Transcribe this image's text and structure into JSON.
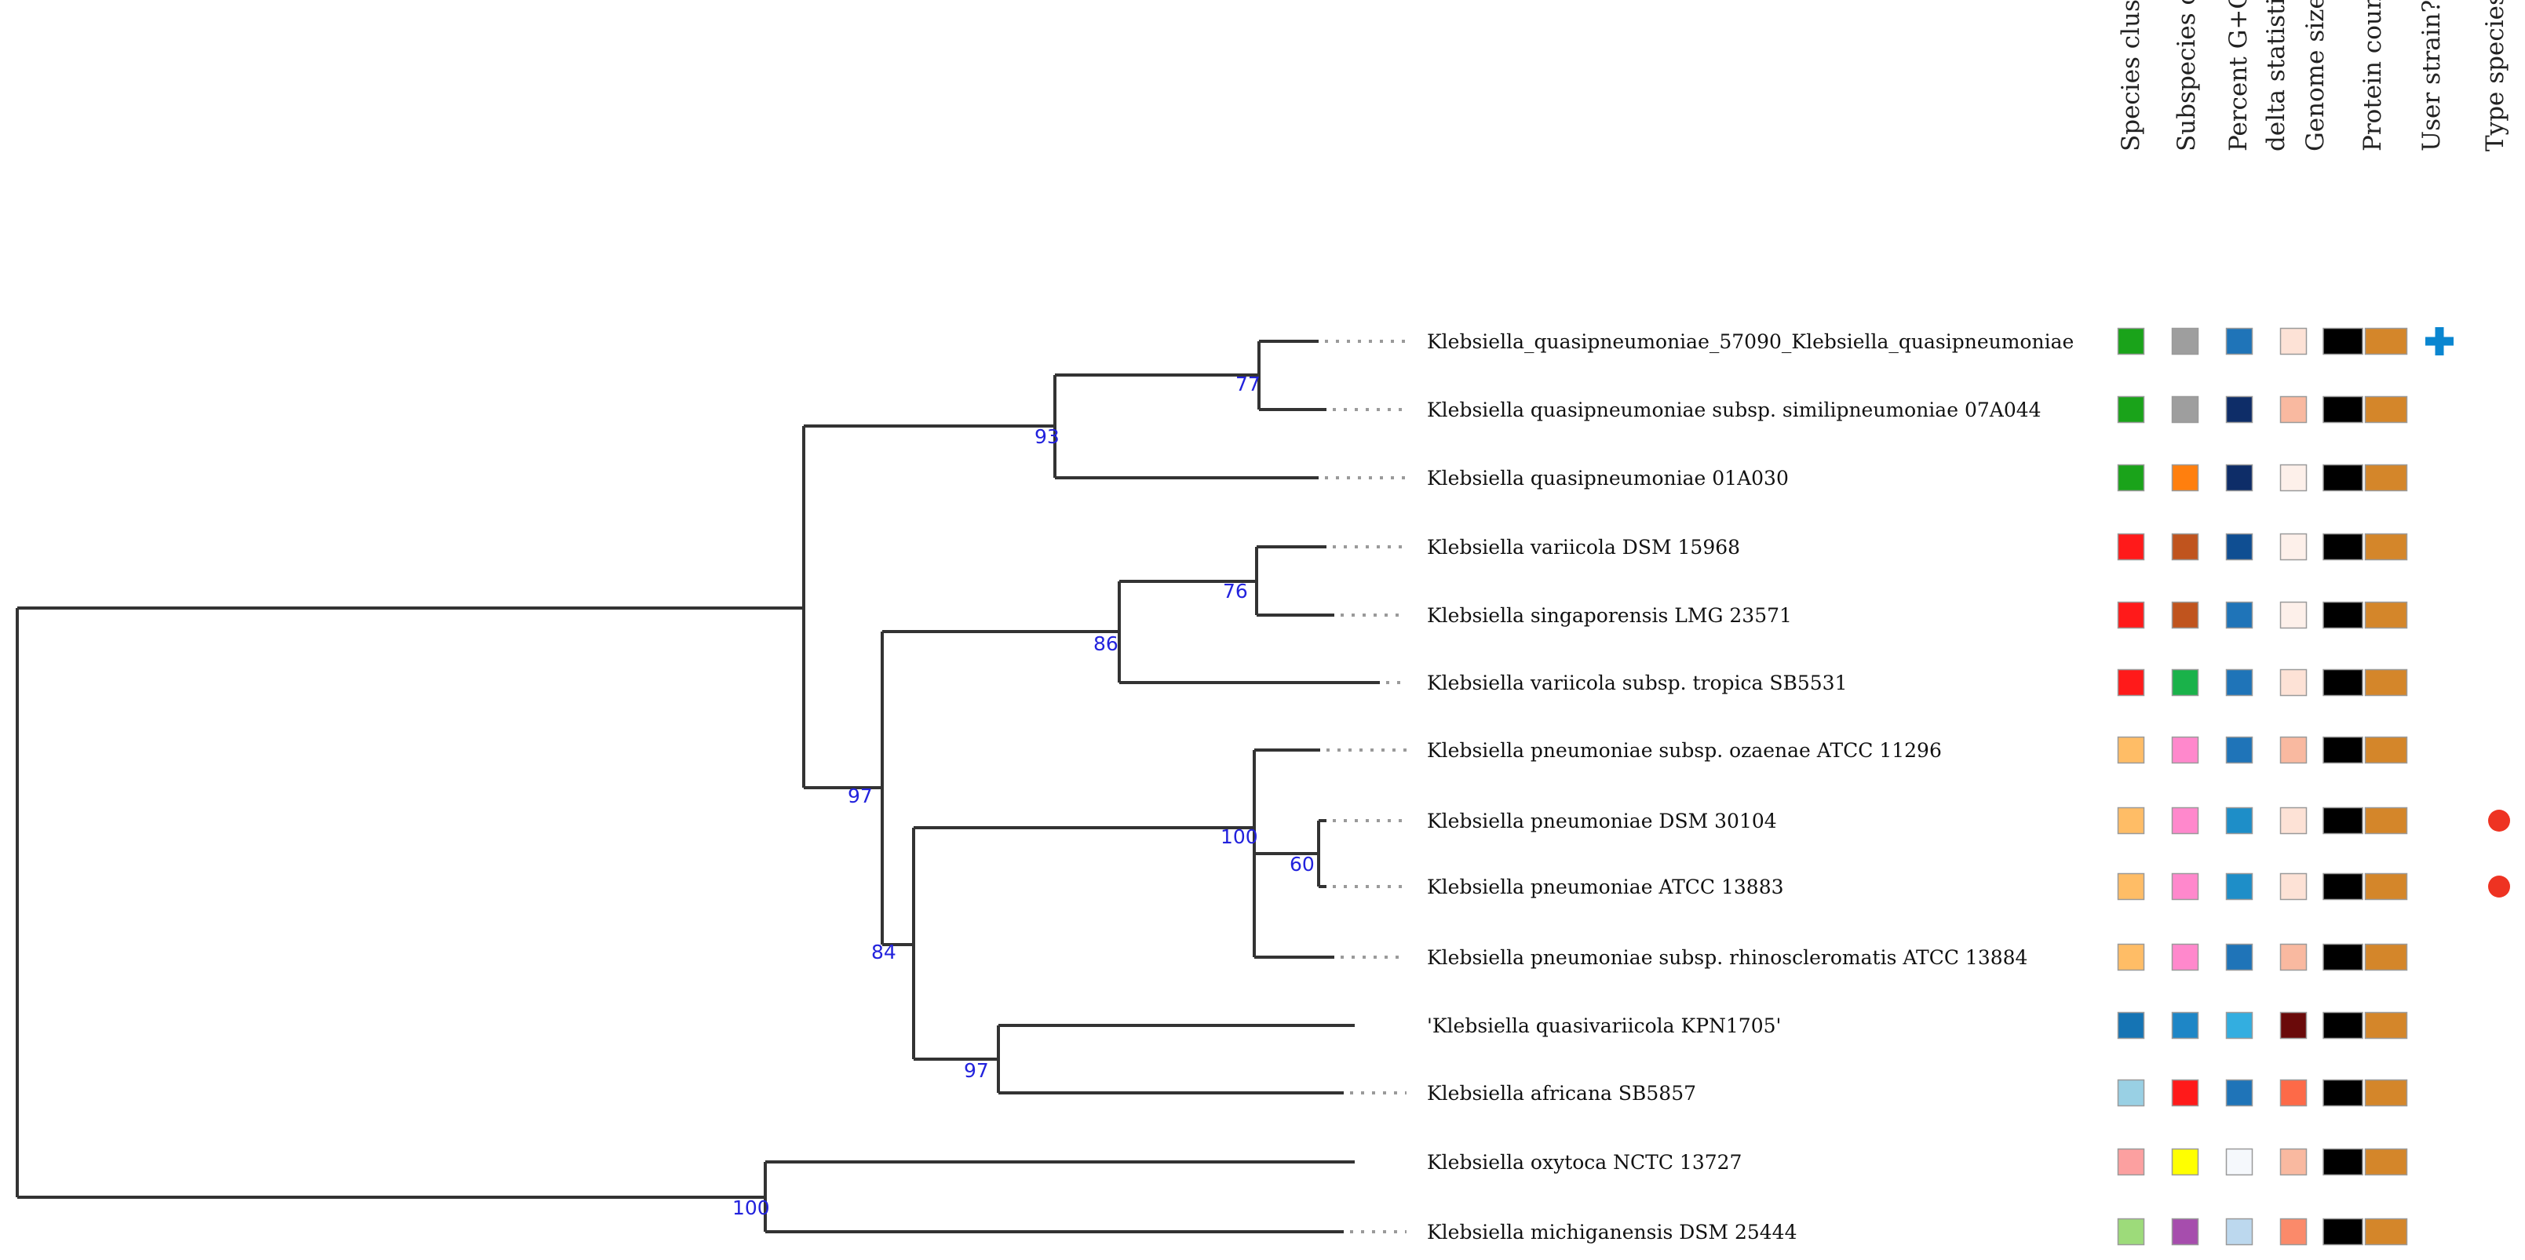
{
  "columns": [
    {
      "id": "species",
      "label": "Species cluster"
    },
    {
      "id": "subspecies",
      "label": "Subspecies cluster"
    },
    {
      "id": "gc",
      "label": "Percent G+C"
    },
    {
      "id": "delta",
      "label": "delta statistics"
    },
    {
      "id": "size",
      "label": "Genome size (in bp)"
    },
    {
      "id": "protein",
      "label": "Protein count"
    },
    {
      "id": "user",
      "label": "User strain?"
    },
    {
      "id": "type",
      "label": "Type species?"
    }
  ],
  "leaves": [
    {
      "name": "Klebsiella_quasipneumoniae_57090_Klebsiella_quasipneumoniae",
      "colors": [
        "#1aa31a",
        "#9e9e9e",
        "#1f74b8",
        "#fde2d6",
        "#000000",
        "#d4862a"
      ],
      "user_strain": true,
      "type_species": false
    },
    {
      "name": "Klebsiella quasipneumoniae subsp. similipneumoniae 07A044",
      "colors": [
        "#1aa31a",
        "#9e9e9e",
        "#0e2d68",
        "#f9b9a0",
        "#000000",
        "#d4862a"
      ],
      "user_strain": false,
      "type_species": false
    },
    {
      "name": "Klebsiella quasipneumoniae 01A030",
      "colors": [
        "#1aa31a",
        "#ff7f0e",
        "#0e2d68",
        "#fdf0ea",
        "#000000",
        "#d4862a"
      ],
      "user_strain": false,
      "type_species": false
    },
    {
      "name": "Klebsiella variicola DSM 15968",
      "colors": [
        "#ff1a1a",
        "#c0541e",
        "#0f4e92",
        "#fdf0ea",
        "#000000",
        "#d4862a"
      ],
      "user_strain": false,
      "type_species": false
    },
    {
      "name": "Klebsiella singaporensis LMG 23571",
      "colors": [
        "#ff1a1a",
        "#c0541e",
        "#1f74b8",
        "#fdf0ea",
        "#000000",
        "#d4862a"
      ],
      "user_strain": false,
      "type_species": false
    },
    {
      "name": "Klebsiella variicola subsp. tropica SB5531",
      "colors": [
        "#ff1a1a",
        "#1ab24a",
        "#1f74b8",
        "#fde2d6",
        "#000000",
        "#d4862a"
      ],
      "user_strain": false,
      "type_species": false
    },
    {
      "name": "Klebsiella pneumoniae subsp. ozaenae ATCC 11296",
      "colors": [
        "#ffbd66",
        "#ff88cc",
        "#1f74b8",
        "#f9b9a0",
        "#000000",
        "#d4862a"
      ],
      "user_strain": false,
      "type_species": false
    },
    {
      "name": "Klebsiella pneumoniae DSM 30104",
      "colors": [
        "#ffbd66",
        "#ff88cc",
        "#1e8ec8",
        "#fde2d6",
        "#000000",
        "#d4862a"
      ],
      "user_strain": false,
      "type_species": true
    },
    {
      "name": "Klebsiella pneumoniae ATCC 13883",
      "colors": [
        "#ffbd66",
        "#ff88cc",
        "#1e8ec8",
        "#fde2d6",
        "#000000",
        "#d4862a"
      ],
      "user_strain": false,
      "type_species": true
    },
    {
      "name": "Klebsiella pneumoniae subsp. rhinoscleromatis ATCC 13884",
      "colors": [
        "#ffbd66",
        "#ff88cc",
        "#1f74b8",
        "#f9b9a0",
        "#000000",
        "#d4862a"
      ],
      "user_strain": false,
      "type_species": false
    },
    {
      "name": "'Klebsiella quasivariicola KPN1705'",
      "colors": [
        "#1574b4",
        "#1e86c6",
        "#33aee0",
        "#6a0a0a",
        "#000000",
        "#d4862a"
      ],
      "user_strain": false,
      "type_species": false
    },
    {
      "name": "Klebsiella africana SB5857",
      "colors": [
        "#99d0e4",
        "#ff1a1a",
        "#1f74b8",
        "#fd6a48",
        "#000000",
        "#d4862a"
      ],
      "user_strain": false,
      "type_species": false
    },
    {
      "name": "Klebsiella oxytoca NCTC 13727",
      "colors": [
        "#fca0a0",
        "#ffff00",
        "#f5f8fc",
        "#f9b9a0",
        "#000000",
        "#d4862a"
      ],
      "user_strain": false,
      "type_species": false
    },
    {
      "name": "Klebsiella michiganensis DSM 25444",
      "colors": [
        "#9ddb7a",
        "#a64dad",
        "#bcd8ee",
        "#fb8a6a",
        "#000000",
        "#d4862a"
      ],
      "user_strain": false,
      "type_species": false
    }
  ],
  "support_values": [
    "77",
    "93",
    "76",
    "86",
    "60",
    "100",
    "97",
    "84",
    "97",
    "100"
  ],
  "legend_colors": {
    "user_strain_marker": "#0a86d0",
    "type_species_marker": "#ee3322"
  }
}
